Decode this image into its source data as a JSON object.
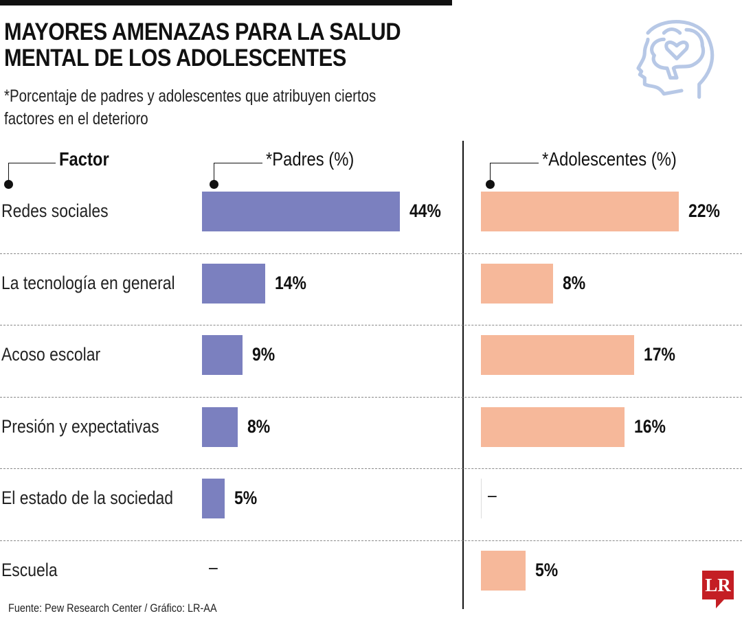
{
  "title": "MAYORES AMENAZAS PARA LA SALUD MENTAL DE LOS ADOLESCENTES",
  "subtitle": "*Porcentaje de padres y adolescentes que atribuyen ciertos factores en el deterioro",
  "source": "Fuente: Pew Research Center / Gráfico: LR-AA",
  "logo_text": "LR",
  "icon": "head-brain-heart-icon",
  "chart_data": {
    "type": "bar",
    "orientation": "horizontal",
    "category_header": "Factor",
    "categories": [
      "Redes sociales",
      "La tecnología en general",
      "Acoso escolar",
      "Presión y expectativas",
      "El estado de la sociedad",
      "Escuela"
    ],
    "series": [
      {
        "name": "*Padres (%)",
        "values": [
          44,
          14,
          9,
          8,
          5,
          null
        ],
        "color": "#7b80bf"
      },
      {
        "name": "*Adolescentes (%)",
        "values": [
          22,
          8,
          17,
          16,
          null,
          5
        ],
        "color": "#f6b89a"
      }
    ],
    "missing_label": "–",
    "value_suffix": "%",
    "grid": false
  }
}
